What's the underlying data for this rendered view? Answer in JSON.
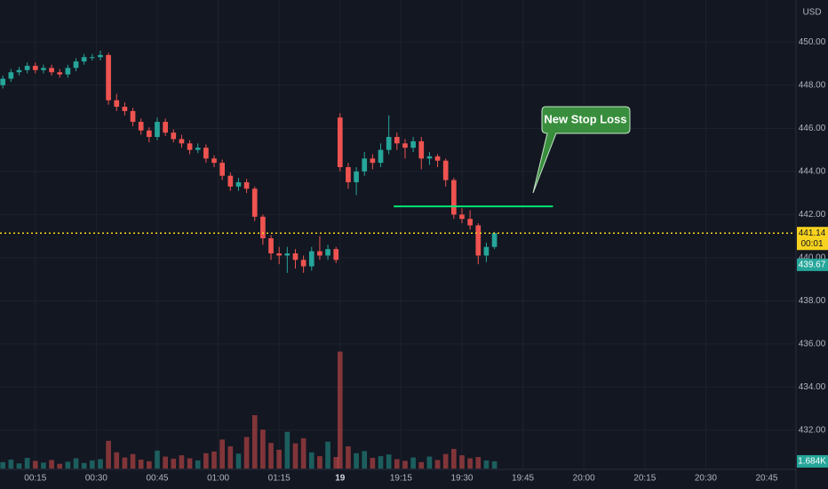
{
  "chart_data": {
    "type": "candlestick",
    "currency": "USD",
    "x": [
      7,
      9,
      11,
      13,
      15,
      17,
      19,
      21,
      23,
      25,
      27,
      29,
      31,
      33,
      35,
      37,
      39,
      41,
      43,
      45,
      47,
      49,
      51,
      53,
      55,
      57,
      59,
      61,
      63,
      65,
      67,
      69,
      71,
      73,
      75,
      77,
      79,
      81,
      83,
      85,
      87,
      89,
      90,
      92,
      94,
      96,
      98,
      100,
      102,
      104,
      106,
      108,
      110,
      112,
      114,
      116,
      118,
      120,
      122,
      124,
      126,
      128
    ],
    "open": [
      448.0,
      448.3,
      448.6,
      448.7,
      448.9,
      448.7,
      448.8,
      448.6,
      448.5,
      448.8,
      449.1,
      449.3,
      449.3,
      449.4,
      447.3,
      447.0,
      446.8,
      446.3,
      445.9,
      445.6,
      446.3,
      445.8,
      445.5,
      445.3,
      445.0,
      445.1,
      444.6,
      444.4,
      443.8,
      443.3,
      443.5,
      443.2,
      441.9,
      440.9,
      440.2,
      440.1,
      440.2,
      439.9,
      439.6,
      440.3,
      440.1,
      440.4,
      446.5,
      444.2,
      443.5,
      444.0,
      444.6,
      444.4,
      445.0,
      445.6,
      445.3,
      445.1,
      445.4,
      444.6,
      444.7,
      444.5,
      443.6,
      442.0,
      441.8,
      441.5,
      440.1,
      440.5
    ],
    "high": [
      448.45,
      448.75,
      448.85,
      449.05,
      449.05,
      448.95,
      448.95,
      448.75,
      448.95,
      449.25,
      449.45,
      449.45,
      449.6,
      449.5,
      447.6,
      447.2,
      446.95,
      446.45,
      446.05,
      446.5,
      446.45,
      445.95,
      445.7,
      445.45,
      445.3,
      445.25,
      444.75,
      444.55,
      443.95,
      443.7,
      443.65,
      443.3,
      442.0,
      441.05,
      440.5,
      440.5,
      440.4,
      440.1,
      440.5,
      441.0,
      440.6,
      440.5,
      446.7,
      444.4,
      444.2,
      444.9,
      444.8,
      445.3,
      446.6,
      445.8,
      445.5,
      445.6,
      445.6,
      444.9,
      444.8,
      444.6,
      443.7,
      442.3,
      442.2,
      441.6,
      440.7,
      441.2
    ],
    "low": [
      447.85,
      448.15,
      448.45,
      448.55,
      448.55,
      448.55,
      448.45,
      448.35,
      448.35,
      448.65,
      448.95,
      449.15,
      449.15,
      447.1,
      446.8,
      446.6,
      446.1,
      445.7,
      445.35,
      445.45,
      445.65,
      445.35,
      445.1,
      444.8,
      444.85,
      444.4,
      444.2,
      443.6,
      443.1,
      443.1,
      443.0,
      441.7,
      440.6,
      439.9,
      439.7,
      439.3,
      439.5,
      439.3,
      439.4,
      439.9,
      439.9,
      439.75,
      444.0,
      443.2,
      442.9,
      443.8,
      444.1,
      444.2,
      444.8,
      445.0,
      444.6,
      444.9,
      444.1,
      444.3,
      444.2,
      443.3,
      441.8,
      441.6,
      441.3,
      439.7,
      439.8,
      440.4
    ],
    "close": [
      448.3,
      448.6,
      448.7,
      448.9,
      448.7,
      448.8,
      448.6,
      448.5,
      448.8,
      449.1,
      449.3,
      449.3,
      449.4,
      447.3,
      447.0,
      446.8,
      446.3,
      445.9,
      445.6,
      446.3,
      445.8,
      445.5,
      445.3,
      445.0,
      445.1,
      444.6,
      444.4,
      443.8,
      443.3,
      443.5,
      443.2,
      441.9,
      440.9,
      440.2,
      440.1,
      440.2,
      439.9,
      439.6,
      440.3,
      440.1,
      440.4,
      439.9,
      444.2,
      443.5,
      444.0,
      444.6,
      444.4,
      445.0,
      445.6,
      445.3,
      445.1,
      445.4,
      444.6,
      444.7,
      444.5,
      443.6,
      442.0,
      441.8,
      441.5,
      440.1,
      440.5,
      441.14
    ],
    "volume": [
      1.5,
      2.1,
      1.2,
      2.5,
      1.8,
      1.4,
      2.0,
      1.1,
      1.6,
      2.4,
      1.3,
      1.9,
      2.2,
      6.5,
      3.8,
      2.6,
      3.4,
      2.1,
      1.7,
      4.2,
      2.8,
      2.3,
      3.1,
      2.4,
      1.9,
      3.6,
      4.0,
      6.8,
      5.2,
      3.5,
      7.4,
      12.5,
      9.1,
      6.0,
      4.4,
      8.6,
      5.9,
      7.1,
      3.8,
      2.9,
      6.3,
      2.7,
      27.4,
      5.2,
      3.6,
      4.1,
      2.5,
      2.9,
      3.3,
      2.2,
      1.8,
      2.6,
      1.5,
      2.8,
      2.0,
      3.4,
      4.6,
      3.1,
      2.4,
      2.7,
      1.9,
      1.684
    ],
    "volume_last_label": "1.684K",
    "up_color": "#26a69a",
    "down_color": "#ef5350",
    "xlim": [
      6.3,
      202
    ],
    "xticks": [
      {
        "value": 15,
        "label": "00:15"
      },
      {
        "value": 30,
        "label": "00:30"
      },
      {
        "value": 45,
        "label": "00:45"
      },
      {
        "value": 60,
        "label": "01:00"
      },
      {
        "value": 75,
        "label": "01:15"
      },
      {
        "value": 90,
        "label": "19"
      },
      {
        "value": 105,
        "label": "19:15"
      },
      {
        "value": 120,
        "label": "19:30"
      },
      {
        "value": 135,
        "label": "19:45"
      },
      {
        "value": 150,
        "label": "20:00"
      },
      {
        "value": 165,
        "label": "20:15"
      },
      {
        "value": 180,
        "label": "20:30"
      },
      {
        "value": 195,
        "label": "20:45"
      }
    ],
    "ylim": [
      430.1,
      451.95
    ],
    "yticks": [
      {
        "value": 432,
        "label": "432.00"
      },
      {
        "value": 434,
        "label": "434.00"
      },
      {
        "value": 436,
        "label": "436.00"
      },
      {
        "value": 438,
        "label": "438.00"
      },
      {
        "value": 440,
        "label": "440.00"
      },
      {
        "value": 442,
        "label": "442.00"
      },
      {
        "value": 444,
        "label": "444.00"
      },
      {
        "value": 446,
        "label": "446.00"
      },
      {
        "value": 448,
        "label": "448.00"
      },
      {
        "value": 450,
        "label": "450.00"
      }
    ],
    "grid": true,
    "last_price": {
      "value": 441.14,
      "label": "441.14",
      "color": "#f7d21e"
    },
    "countdown": "00:01",
    "marker_price": {
      "value": 439.67,
      "label": "439.67",
      "color": "#26a69a"
    },
    "stop_loss": {
      "x": [
        103.2,
        142.4
      ],
      "y": 442.38,
      "color": "#00e676"
    },
    "annotation": "New Stop Loss"
  }
}
